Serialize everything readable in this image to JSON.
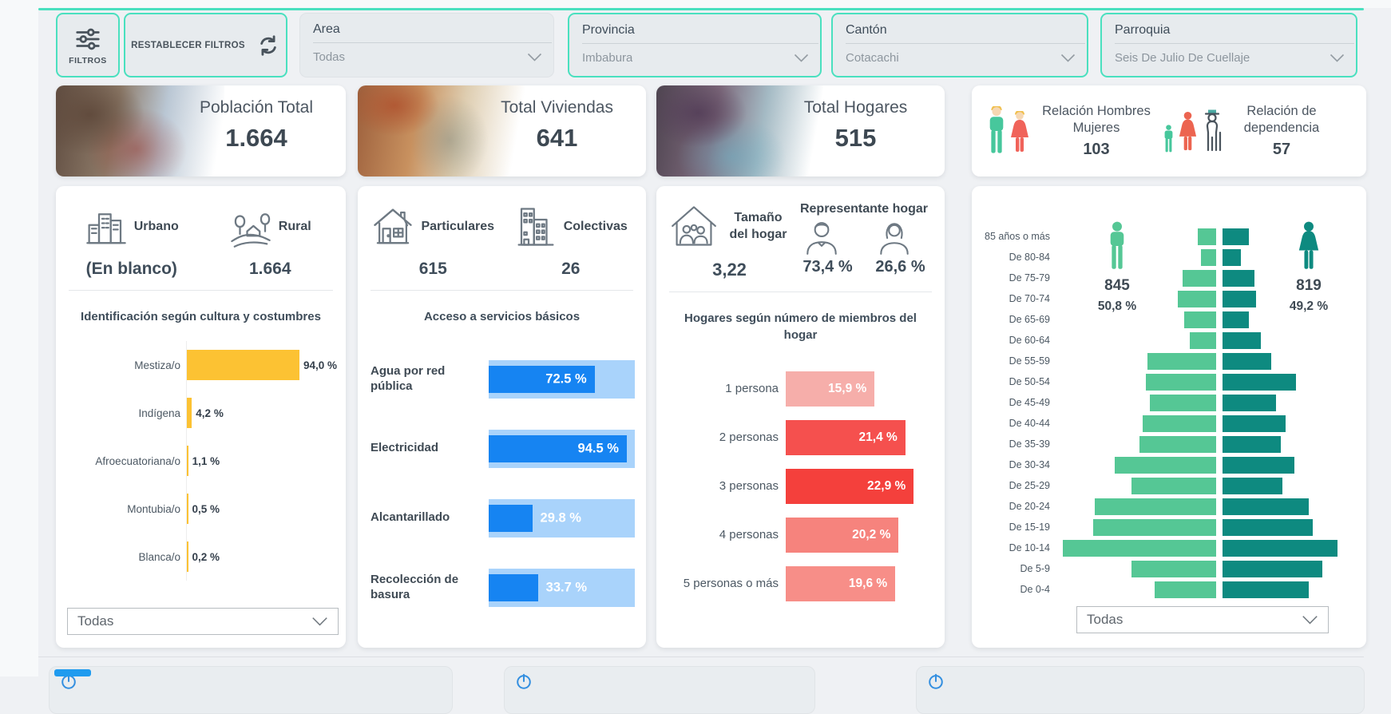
{
  "accent_color": "#4ae0bf",
  "filter_bar": {
    "filtros_button": "FILTROS",
    "reset_button": "RESTABLECER FILTROS",
    "slicers": [
      {
        "label": "Area",
        "value": "Todas",
        "highlighted": false
      },
      {
        "label": "Provincia",
        "value": "Imbabura",
        "highlighted": true
      },
      {
        "label": "Cantón",
        "value": "Cotacachi",
        "highlighted": true
      },
      {
        "label": "Parroquia",
        "value": "Seis De Julio De Cuellaje",
        "highlighted": true
      }
    ]
  },
  "kpi_cards": [
    {
      "title": "Población Total",
      "value": "1.664"
    },
    {
      "title": "Total Viviendas",
      "value": "641"
    },
    {
      "title": "Total Hogares",
      "value": "515"
    }
  ],
  "ratio_card": {
    "men_women": {
      "title": "Relación Hombres Mujeres",
      "value": "103"
    },
    "dependency": {
      "title": "Relación de dependencia",
      "value": "57"
    }
  },
  "area_card": {
    "urbano_label": "Urbano",
    "urbano_value": "(En blanco)",
    "rural_label": "Rural",
    "rural_value": "1.664",
    "dropdown_value": "Todas"
  },
  "viviendas_card": {
    "particulares_label": "Particulares",
    "particulares_value": "615",
    "colectivas_label": "Colectivas",
    "colectivas_value": "26"
  },
  "hogares_card": {
    "tamano_label": "Tamaño del hogar",
    "tamano_value": "3,22",
    "representante_label": "Representante hogar",
    "male_value": "73,4 %",
    "female_value": "26,6 %"
  },
  "pyramid_card": {
    "male_total": "845",
    "male_percent": "50,8 %",
    "female_total": "819",
    "female_percent": "49,2 %",
    "dropdown_value": "Todas"
  },
  "chart_data": [
    {
      "type": "bar",
      "orientation": "horizontal",
      "title": "Identificación según cultura y costumbres",
      "categories": [
        "Mestiza/o",
        "Indígena",
        "Afroecuatoriana/o",
        "Montubia/o",
        "Blanca/o"
      ],
      "values": [
        94.0,
        4.2,
        1.1,
        0.5,
        0.2
      ],
      "value_labels": [
        "94,0 %",
        "4,2 %",
        "1,1 %",
        "0,5 %",
        "0,2 %"
      ],
      "bar_color": "#fcc233",
      "xlim": [
        0,
        100
      ]
    },
    {
      "type": "bar",
      "orientation": "horizontal",
      "title": "Acceso a servicios básicos",
      "categories": [
        "Agua por red pública",
        "Electricidad",
        "Alcantarillado",
        "Recolección de basura"
      ],
      "values": [
        72.5,
        94.5,
        29.8,
        33.7
      ],
      "value_labels": [
        "72.5 %",
        "94.5 %",
        "29.8 %",
        "33.7 %"
      ],
      "bar_color": "#1684f2",
      "track_color": "#a9d3fb",
      "xlim": [
        0,
        100
      ]
    },
    {
      "type": "bar",
      "orientation": "horizontal",
      "title": "Hogares según número de miembros del hogar",
      "categories": [
        "1 persona",
        "2 personas",
        "3 personas",
        "4 personas",
        "5 personas o más"
      ],
      "values": [
        15.9,
        21.4,
        22.9,
        20.2,
        19.6
      ],
      "value_labels": [
        "15,9 %",
        "21,4 %",
        "22,9 %",
        "20,2 %",
        "19,6 %"
      ],
      "bar_colors": [
        "#f6aeaa",
        "#f5504e",
        "#f4403c",
        "#f6837d",
        "#f78e88"
      ]
    },
    {
      "type": "bar",
      "subtype": "population_pyramid",
      "categories": [
        "85 años o más",
        "De 80-84",
        "De 75-79",
        "De 70-74",
        "De 65-69",
        "De 60-64",
        "De 55-59",
        "De 50-54",
        "De 45-49",
        "De 40-44",
        "De 35-39",
        "De 30-34",
        "De 25-29",
        "De 20-24",
        "De 15-19",
        "De 10-14",
        "De 5-9",
        "De 0-4"
      ],
      "values_are_estimates": true,
      "series": [
        {
          "name": "Hombres",
          "side": "left",
          "color": "#55c795",
          "total": 845,
          "percent": 50.8,
          "values_pct_of_max": [
            12,
            10,
            22,
            25,
            21,
            17,
            45,
            46,
            43,
            48,
            50,
            66,
            55,
            79,
            80,
            100,
            55,
            40
          ]
        },
        {
          "name": "Mujeres",
          "side": "right",
          "color": "#0e8a80",
          "total": 819,
          "percent": 49.2,
          "values_pct_of_max": [
            17,
            12,
            21,
            22,
            17,
            25,
            32,
            48,
            35,
            41,
            38,
            47,
            39,
            56,
            59,
            75,
            65,
            56
          ]
        }
      ]
    }
  ]
}
